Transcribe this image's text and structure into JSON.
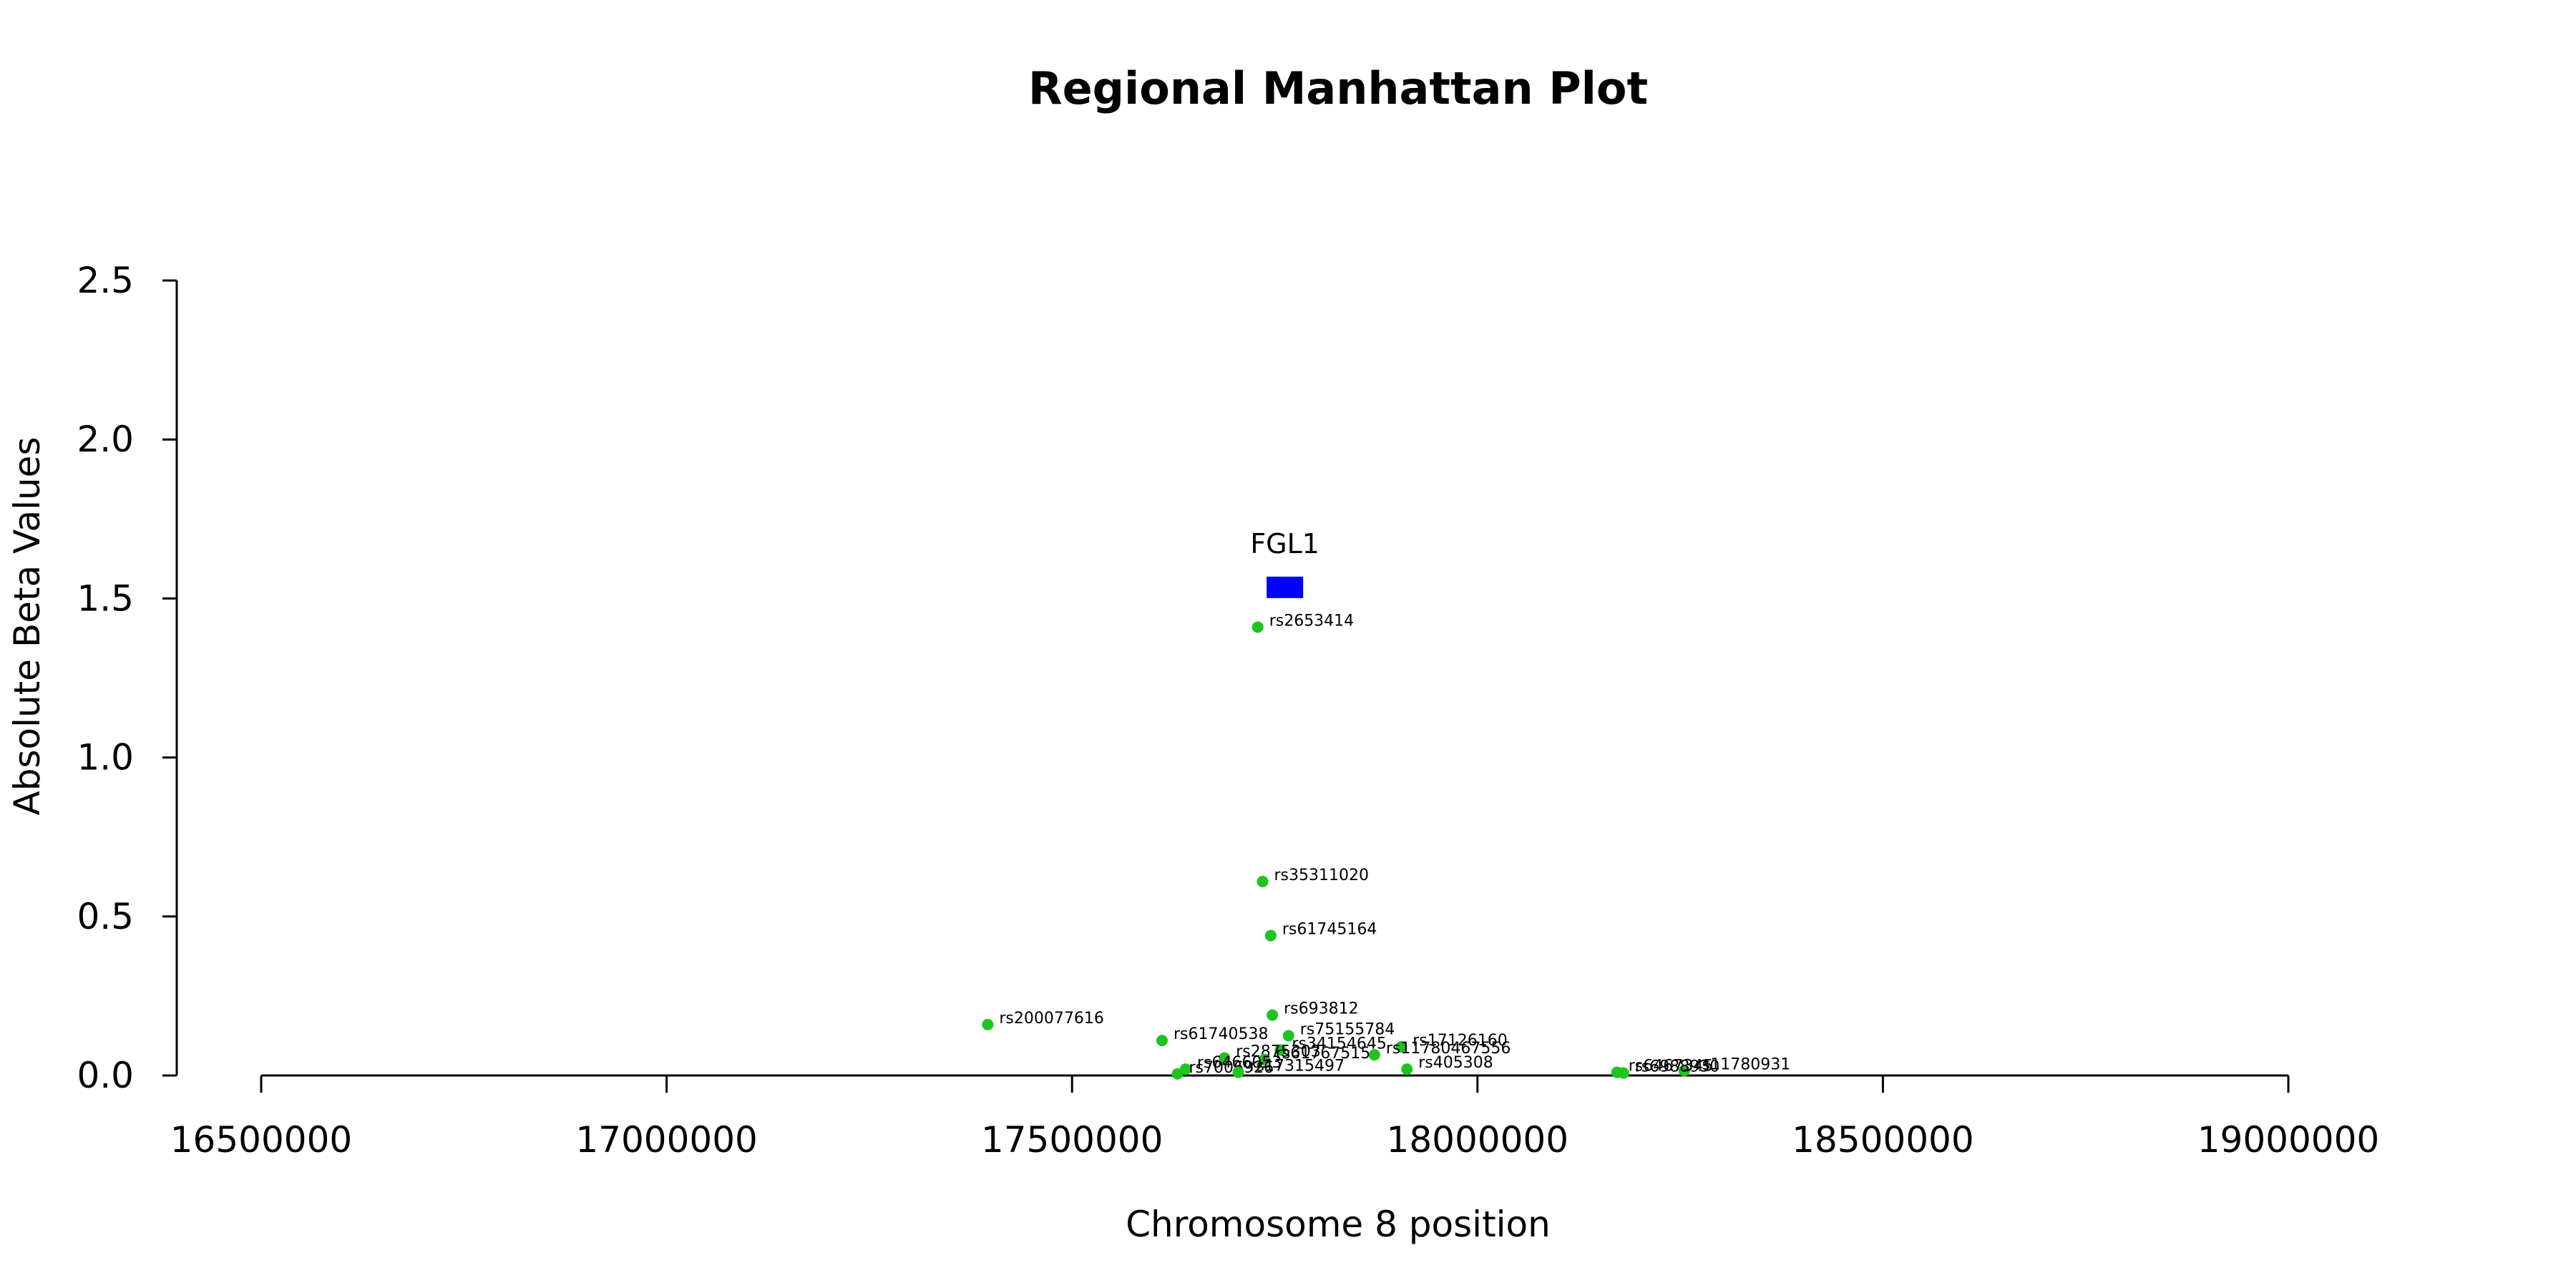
{
  "chart_data": {
    "type": "scatter",
    "title": "Regional Manhattan Plot",
    "xlabel": "Chromosome 8 position",
    "ylabel": "Absolute Beta Values",
    "xlim": [
      16500000,
      19000000
    ],
    "ylim": [
      0,
      2.5
    ],
    "x_ticks": [
      "16500000",
      "17000000",
      "17500000",
      "18000000",
      "18500000",
      "19000000"
    ],
    "y_ticks": [
      "0.0",
      "0.5",
      "1.0",
      "1.5",
      "2.0",
      "2.5"
    ],
    "grid": false,
    "point_color": "#1ec51e",
    "gene": {
      "name": "FGL1",
      "start": 17740000,
      "end": 17785000,
      "y": 1.535,
      "color": "#0000ff"
    },
    "points": [
      {
        "label": "rs2653414",
        "x": 17729000,
        "y": 1.41
      },
      {
        "label": "rs35311020",
        "x": 17735000,
        "y": 0.61
      },
      {
        "label": "rs61745164",
        "x": 17745000,
        "y": 0.44
      },
      {
        "label": "rs693812",
        "x": 17747000,
        "y": 0.19
      },
      {
        "label": "rs200077616",
        "x": 17396000,
        "y": 0.16
      },
      {
        "label": "rs75155784",
        "x": 17767000,
        "y": 0.125
      },
      {
        "label": "rs61740538",
        "x": 17611000,
        "y": 0.11
      },
      {
        "label": "rs17126160",
        "x": 17906000,
        "y": 0.09
      },
      {
        "label": "rs34154645",
        "x": 17757000,
        "y": 0.08
      },
      {
        "label": "rs11780467556",
        "x": 17873000,
        "y": 0.065
      },
      {
        "label": "rs2875303",
        "x": 17688000,
        "y": 0.055
      },
      {
        "label": "rs61767515",
        "x": 17737000,
        "y": 0.05
      },
      {
        "label": "rs405308",
        "x": 17913000,
        "y": 0.02
      },
      {
        "label": "rs6466053",
        "x": 17640000,
        "y": 0.02
      },
      {
        "label": "rs7006926",
        "x": 17630000,
        "y": 0.005
      },
      {
        "label": "rs17315497",
        "x": 17705000,
        "y": 0.01
      },
      {
        "label": "rs11780931",
        "x": 18255000,
        "y": 0.015
      },
      {
        "label": "rs6467345",
        "x": 18172000,
        "y": 0.01
      },
      {
        "label": "rs6988930",
        "x": 18180000,
        "y": 0.008
      }
    ]
  }
}
